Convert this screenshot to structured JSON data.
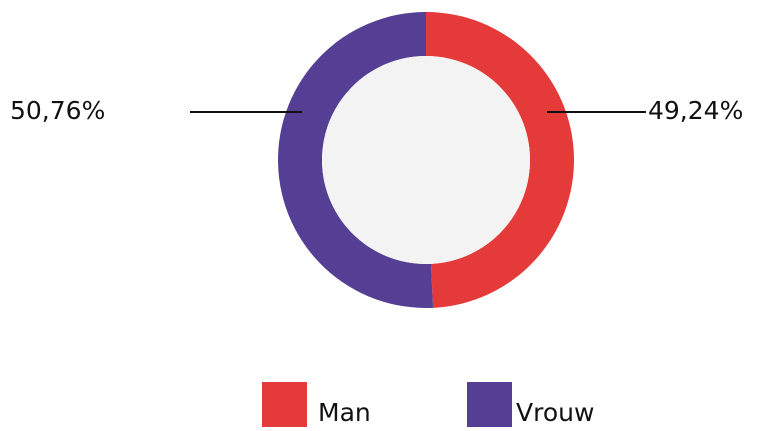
{
  "chart_data": {
    "type": "donut",
    "categories": [
      "Man",
      "Vrouw"
    ],
    "values": [
      49.24,
      50.76
    ],
    "value_labels": [
      "49,24%",
      "50,76%"
    ],
    "colors": [
      "#e53a3a",
      "#543f95"
    ],
    "legend": "bottom"
  }
}
